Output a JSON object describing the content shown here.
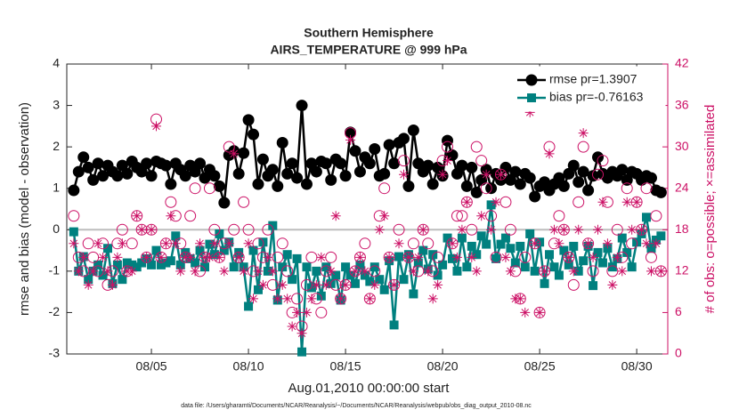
{
  "chart_data": {
    "type": "line",
    "title": "Southern Hemisphere",
    "subtitle": "AIRS_TEMPERATURE @ 999 hPa",
    "xlabel": "Aug.01,2010 00:00:00 start",
    "ylabel": "rmse and bias (model - observation)",
    "y2label": "# of obs: o=possible; ×=assimilated",
    "footnote": "data file: /Users/gharamti/Documents/NCAR/Reanalysis/~/Documents/NCAR/Reanalysis/webpub/obs_diag_output_2010-08.nc",
    "xlim": [
      0.64,
      31.6
    ],
    "xticks": [
      {
        "value": 5,
        "label": "08/05"
      },
      {
        "value": 10,
        "label": "08/10"
      },
      {
        "value": 15,
        "label": "08/15"
      },
      {
        "value": 20,
        "label": "08/20"
      },
      {
        "value": 25,
        "label": "08/25"
      },
      {
        "value": 30,
        "label": "08/30"
      }
    ],
    "ylim": [
      -3,
      4
    ],
    "yticks": [
      -3,
      -2,
      -1,
      0,
      1,
      2,
      3,
      4
    ],
    "y2lim": [
      0,
      42
    ],
    "y2ticks": [
      0,
      6,
      12,
      18,
      24,
      30,
      36,
      42
    ],
    "grid": false,
    "zero_line": true,
    "legend": "upper right",
    "x": [
      1,
      1.25,
      1.5,
      1.75,
      2,
      2.25,
      2.5,
      2.75,
      3,
      3.25,
      3.5,
      3.75,
      4,
      4.25,
      4.5,
      4.75,
      5,
      5.25,
      5.5,
      5.75,
      6,
      6.25,
      6.5,
      6.75,
      7,
      7.25,
      7.5,
      7.75,
      8,
      8.25,
      8.5,
      8.75,
      9,
      9.25,
      9.5,
      9.75,
      10,
      10.25,
      10.5,
      10.75,
      11,
      11.25,
      11.5,
      11.75,
      12,
      12.25,
      12.5,
      12.75,
      13,
      13.25,
      13.5,
      13.75,
      14,
      14.25,
      14.5,
      14.75,
      15,
      15.25,
      15.5,
      15.75,
      16,
      16.25,
      16.5,
      16.75,
      17,
      17.25,
      17.5,
      17.75,
      18,
      18.25,
      18.5,
      18.75,
      19,
      19.25,
      19.5,
      19.75,
      20,
      20.25,
      20.5,
      20.75,
      21,
      21.25,
      21.5,
      21.75,
      22,
      22.25,
      22.5,
      22.75,
      23,
      23.25,
      23.5,
      23.75,
      24,
      24.25,
      24.5,
      24.75,
      25,
      25.25,
      25.5,
      25.75,
      26,
      26.25,
      26.5,
      26.75,
      27,
      27.25,
      27.5,
      27.75,
      28,
      28.25,
      28.5,
      28.75,
      29,
      29.25,
      29.5,
      29.75,
      30,
      30.25,
      30.5,
      30.75,
      31,
      31.25
    ],
    "series": [
      {
        "name": "rmse pr=1.3907",
        "color": "#000000",
        "marker": "circle-filled",
        "axis": "y",
        "values": [
          0.95,
          1.4,
          1.75,
          1.5,
          1.2,
          1.6,
          1.3,
          1.55,
          1.4,
          1.3,
          1.55,
          1.35,
          1.65,
          1.5,
          1.4,
          1.6,
          1.3,
          1.65,
          1.6,
          1.55,
          1.1,
          1.6,
          1.45,
          1.3,
          1.55,
          1.4,
          1.6,
          1.25,
          1.45,
          1.3,
          1.05,
          0.65,
          1.8,
          1.9,
          1.35,
          1.85,
          2.65,
          2.3,
          1.1,
          1.7,
          1.3,
          1.45,
          1.05,
          2.1,
          1.35,
          1.6,
          1.25,
          3.0,
          1.1,
          1.6,
          1.4,
          1.65,
          1.6,
          1.2,
          1.7,
          1.6,
          1.3,
          2.35,
          1.9,
          1.4,
          1.75,
          1.6,
          1.95,
          1.3,
          1.35,
          2.05,
          1.6,
          2.1,
          2.2,
          1.05,
          2.4,
          1.6,
          1.4,
          1.55,
          1.1,
          1.5,
          1.3,
          2.15,
          1.8,
          1.35,
          1.55,
          1.05,
          1.5,
          0.9,
          1.2,
          1.45,
          1.0,
          1.35,
          1.2,
          1.5,
          1.2,
          1.4,
          1.1,
          1.35,
          1.25,
          0.8,
          1.05,
          1.15,
          0.95,
          1.1,
          1.25,
          1.05,
          1.35,
          1.55,
          1.15,
          1.4,
          0.95,
          1.3,
          1.75,
          1.35,
          1.25,
          1.4,
          1.3,
          1.45,
          1.2,
          1.4,
          1.35,
          1.2,
          1.3,
          1.25,
          0.95,
          0.9
        ]
      },
      {
        "name": "bias pr=-0.76163",
        "color": "#00807f",
        "marker": "square-filled",
        "axis": "y",
        "values": [
          -0.05,
          -1.0,
          -0.65,
          -1.2,
          -1.0,
          -0.85,
          -1.1,
          -0.45,
          -1.3,
          -0.85,
          -1.2,
          -0.8,
          -0.85,
          -0.9,
          -0.8,
          -0.7,
          -0.85,
          -0.5,
          -0.85,
          -0.8,
          -0.75,
          -0.15,
          -0.85,
          -0.55,
          -0.7,
          -0.8,
          -0.5,
          -0.9,
          -0.35,
          -0.6,
          -0.1,
          -0.5,
          -0.3,
          -0.9,
          -0.55,
          -0.9,
          -1.85,
          -0.5,
          -1.45,
          -0.3,
          -1.0,
          0.1,
          -1.7,
          -0.9,
          -0.6,
          -1.2,
          -0.7,
          -2.95,
          -0.9,
          -1.4,
          -1.0,
          -1.6,
          -0.9,
          -1.3,
          -1.1,
          -1.7,
          -0.9,
          -1.1,
          -1.3,
          -0.85,
          -1.1,
          -1.25,
          -0.9,
          -1.2,
          -1.45,
          -0.75,
          -2.3,
          -0.65,
          -1.2,
          -0.6,
          -1.55,
          -0.8,
          -0.5,
          -0.95,
          -0.6,
          -1.1,
          -0.85,
          -0.2,
          -0.7,
          -1.0,
          -0.2,
          -0.9,
          -0.4,
          -0.6,
          -0.15,
          -0.35,
          0.6,
          -0.7,
          -0.35,
          -0.2,
          -0.45,
          -0.8,
          -0.4,
          -0.9,
          -0.1,
          -1.0,
          -0.3,
          -1.3,
          -0.6,
          -0.9,
          -1.1,
          -0.5,
          -0.85,
          -0.4,
          -1.0,
          -0.75,
          -0.4,
          -1.35,
          -0.55,
          -0.8,
          -0.45,
          -0.9,
          -0.7,
          -0.2,
          -0.55,
          -0.9,
          -0.3,
          -0.1,
          0.3,
          -0.45,
          -0.25,
          -0.15
        ]
      },
      {
        "color": "#cc1166",
        "marker": "circle-open",
        "axis": "y2",
        "values": [
          20,
          14,
          12,
          16,
          14,
          12,
          16,
          10,
          12,
          16,
          18,
          12,
          16,
          20,
          18,
          14,
          18,
          34,
          14,
          16,
          22,
          20,
          16,
          14,
          20,
          24,
          12,
          14,
          24,
          18,
          14,
          16,
          30,
          18,
          14,
          22,
          18,
          12,
          16,
          14,
          18,
          10,
          14,
          16,
          12,
          6,
          8,
          4,
          10,
          14,
          8,
          6,
          12,
          14,
          10,
          8,
          10,
          32,
          12,
          14,
          16,
          8,
          12,
          20,
          24,
          14,
          10,
          18,
          28,
          14,
          16,
          12,
          18,
          16,
          12,
          14,
          28,
          30,
          16,
          20,
          20,
          22,
          18,
          30,
          28,
          24,
          20,
          14,
          26,
          22,
          18,
          12,
          8,
          14,
          36,
          16,
          6,
          12,
          30,
          16,
          20,
          18,
          14,
          10,
          22,
          30,
          16,
          12,
          26,
          28,
          22,
          12,
          18,
          14,
          24,
          16,
          22,
          18,
          24,
          14,
          20,
          12
        ]
      },
      {
        "color": "#cc1166",
        "marker": "asterisk",
        "axis": "y2",
        "values": [
          16,
          12,
          14,
          10,
          12,
          16,
          14,
          12,
          10,
          14,
          16,
          12,
          12,
          20,
          18,
          14,
          18,
          33,
          14,
          16,
          20,
          16,
          12,
          14,
          14,
          12,
          16,
          14,
          14,
          16,
          14,
          12,
          16,
          29,
          14,
          12,
          16,
          8,
          12,
          10,
          14,
          12,
          8,
          10,
          8,
          4,
          6,
          3,
          6,
          8,
          10,
          14,
          10,
          12,
          20,
          8,
          10,
          31,
          12,
          14,
          12,
          8,
          10,
          18,
          20,
          14,
          10,
          16,
          26,
          14,
          12,
          14,
          18,
          12,
          8,
          10,
          26,
          28,
          16,
          14,
          18,
          22,
          14,
          12,
          20,
          26,
          18,
          22,
          26,
          14,
          12,
          8,
          8,
          6,
          35,
          16,
          6,
          12,
          29,
          18,
          16,
          18,
          14,
          12,
          18,
          32,
          16,
          14,
          18,
          22,
          16,
          10,
          14,
          12,
          22,
          18,
          22,
          18,
          16,
          12,
          16,
          12
        ]
      }
    ]
  }
}
